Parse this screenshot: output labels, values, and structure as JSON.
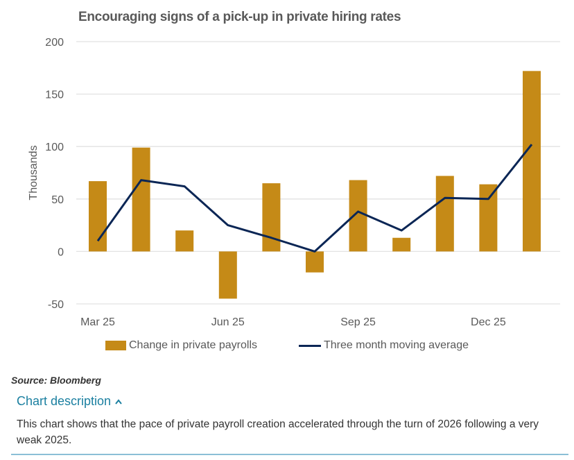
{
  "chart_data": {
    "type": "bar",
    "title": "Encouraging signs of a pick-up in private hiring rates",
    "ylabel": "Thousands",
    "xlabel": "",
    "ylim": [
      -50,
      200
    ],
    "yticks": [
      "200",
      "150",
      "100",
      "50",
      "0",
      "-50"
    ],
    "ytick_values": [
      200,
      150,
      100,
      50,
      0,
      -50
    ],
    "x_ticks": [
      {
        "index": 0,
        "label": "Mar 25"
      },
      {
        "index": 3,
        "label": "Jun 25"
      },
      {
        "index": 6,
        "label": "Sep 25"
      },
      {
        "index": 9,
        "label": "Dec 25"
      }
    ],
    "grid": true,
    "legend_position": "bottom",
    "series": [
      {
        "name": "Change in private payrolls",
        "type": "bar",
        "color": "#c58a17",
        "values": [
          67,
          99,
          20,
          -45,
          65,
          -20,
          68,
          13,
          72,
          64,
          172
        ]
      },
      {
        "name": "Three month moving average",
        "type": "line",
        "color": "#0b2655",
        "values": [
          10,
          68,
          62,
          25,
          13,
          0,
          38,
          20,
          51,
          50,
          102
        ]
      }
    ]
  },
  "source": "Source: Bloomberg",
  "description": {
    "toggle_label": "Chart description",
    "toggle_icon": "chevron-up-icon",
    "text": "This chart shows that the pace of private payroll creation accelerated through the turn of 2026 following a very weak 2025."
  }
}
